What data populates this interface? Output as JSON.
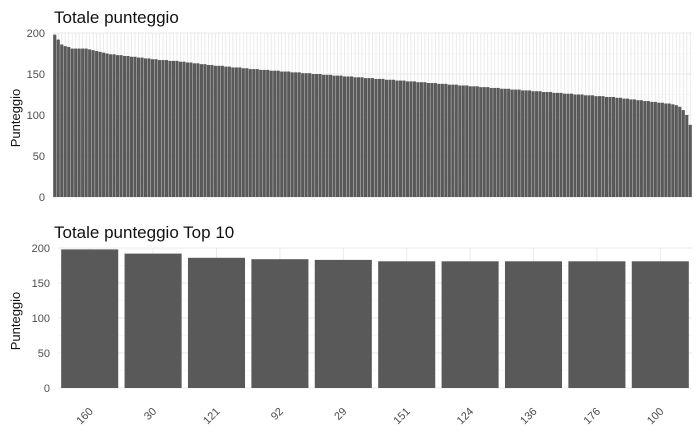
{
  "colors": {
    "bar": "#595959",
    "grid": "#ebebeb",
    "text": "#111111",
    "tick": "#4d4d4d"
  },
  "chart_data": [
    {
      "type": "bar",
      "title": "Totale punteggio",
      "xlabel": "",
      "ylabel": "Punteggio",
      "ylim": [
        0,
        200
      ],
      "yticks": [
        0,
        50,
        100,
        150,
        200
      ],
      "show_x_tick_labels": false,
      "grid": true,
      "values": [
        198,
        192,
        186,
        184,
        183,
        181,
        181,
        181,
        181,
        181,
        180,
        179,
        178,
        177,
        176,
        175,
        174,
        174,
        173,
        173,
        172,
        172,
        171,
        171,
        170,
        170,
        169,
        169,
        168,
        168,
        167,
        167,
        167,
        166,
        166,
        166,
        165,
        165,
        164,
        164,
        163,
        163,
        162,
        162,
        161,
        161,
        160,
        160,
        160,
        159,
        159,
        158,
        158,
        158,
        157,
        157,
        156,
        156,
        156,
        155,
        155,
        155,
        154,
        154,
        154,
        153,
        153,
        153,
        152,
        152,
        152,
        151,
        151,
        151,
        150,
        150,
        150,
        149,
        149,
        149,
        148,
        148,
        148,
        147,
        147,
        147,
        146,
        146,
        146,
        145,
        145,
        145,
        144,
        144,
        144,
        143,
        143,
        143,
        142,
        142,
        142,
        141,
        141,
        141,
        140,
        140,
        140,
        139,
        139,
        139,
        138,
        138,
        138,
        137,
        137,
        137,
        136,
        136,
        136,
        135,
        135,
        135,
        134,
        134,
        134,
        133,
        133,
        133,
        132,
        132,
        132,
        131,
        131,
        131,
        130,
        130,
        130,
        129,
        129,
        129,
        128,
        128,
        128,
        127,
        127,
        127,
        126,
        126,
        126,
        125,
        125,
        125,
        124,
        124,
        124,
        123,
        123,
        123,
        122,
        122,
        122,
        121,
        121,
        120,
        120,
        119,
        119,
        118,
        118,
        117,
        117,
        116,
        116,
        115,
        115,
        114,
        114,
        113,
        112,
        110,
        106,
        100,
        88
      ]
    },
    {
      "type": "bar",
      "title": "Totale punteggio Top 10",
      "xlabel": "",
      "ylabel": "Punteggio",
      "ylim": [
        0,
        200
      ],
      "yticks": [
        0,
        50,
        100,
        150,
        200
      ],
      "grid": true,
      "categories": [
        "160",
        "30",
        "121",
        "92",
        "29",
        "151",
        "124",
        "136",
        "176",
        "100"
      ],
      "values": [
        198,
        192,
        186,
        184,
        183,
        181,
        181,
        181,
        181,
        181
      ]
    }
  ]
}
